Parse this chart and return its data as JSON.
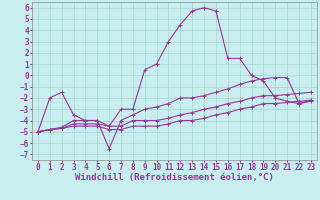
{
  "xlabel": "Windchill (Refroidissement éolien,°C)",
  "xlim": [
    -0.5,
    23.5
  ],
  "ylim": [
    -7.5,
    6.5
  ],
  "yticks": [
    -7,
    -6,
    -5,
    -4,
    -3,
    -2,
    -1,
    0,
    1,
    2,
    3,
    4,
    5,
    6
  ],
  "xticks": [
    0,
    1,
    2,
    3,
    4,
    5,
    6,
    7,
    8,
    9,
    10,
    11,
    12,
    13,
    14,
    15,
    16,
    17,
    18,
    19,
    20,
    21,
    22,
    23
  ],
  "bg_color": "#c8eef0",
  "grid_color": "#a0d8c8",
  "line_color": "#993399",
  "line1_x": [
    0,
    1,
    2,
    3,
    4,
    5,
    6,
    7,
    8,
    9,
    10,
    11,
    12,
    13,
    14,
    15,
    16,
    17,
    18,
    19,
    20,
    21,
    22,
    23
  ],
  "line1_y": [
    -5,
    -2,
    -1.5,
    -3.5,
    -4,
    -4,
    -4.5,
    -3,
    -3,
    0.5,
    1,
    3,
    4.5,
    5.7,
    6,
    5.7,
    1.5,
    1.5,
    0,
    -0.5,
    -2,
    -2.3,
    -2.5,
    -2.2
  ],
  "line2_x": [
    0,
    1,
    2,
    3,
    4,
    5,
    6,
    7,
    8,
    9,
    10,
    11,
    12,
    13,
    14,
    15,
    16,
    17,
    18,
    19,
    20,
    21,
    22,
    23
  ],
  "line2_y": [
    -5,
    -4.8,
    -4.6,
    -4,
    -4,
    -4,
    -6.5,
    -4,
    -3.5,
    -3,
    -2.8,
    -2.5,
    -2,
    -2,
    -1.8,
    -1.5,
    -1.2,
    -0.8,
    -0.5,
    -0.3,
    -0.2,
    -0.2,
    -2.5,
    -2.3
  ],
  "line3_x": [
    0,
    1,
    2,
    3,
    4,
    5,
    6,
    7,
    8,
    9,
    10,
    11,
    12,
    13,
    14,
    15,
    16,
    17,
    18,
    19,
    20,
    21,
    22,
    23
  ],
  "line3_y": [
    -5,
    -4.8,
    -4.7,
    -4.3,
    -4.3,
    -4.3,
    -4.5,
    -4.5,
    -4,
    -4,
    -4,
    -3.8,
    -3.5,
    -3.3,
    -3,
    -2.8,
    -2.5,
    -2.3,
    -2,
    -1.8,
    -1.8,
    -1.7,
    -1.6,
    -1.5
  ],
  "line4_x": [
    0,
    1,
    2,
    3,
    4,
    5,
    6,
    7,
    8,
    9,
    10,
    11,
    12,
    13,
    14,
    15,
    16,
    17,
    18,
    19,
    20,
    21,
    22,
    23
  ],
  "line4_y": [
    -5,
    -4.8,
    -4.7,
    -4.5,
    -4.5,
    -4.5,
    -4.8,
    -4.8,
    -4.5,
    -4.5,
    -4.5,
    -4.3,
    -4,
    -4,
    -3.8,
    -3.5,
    -3.3,
    -3,
    -2.8,
    -2.5,
    -2.5,
    -2.4,
    -2.3,
    -2.2
  ],
  "marker": "+",
  "marker_size": 3,
  "linewidth": 0.8,
  "xlabel_fontsize": 6.5,
  "tick_fontsize": 5.5
}
